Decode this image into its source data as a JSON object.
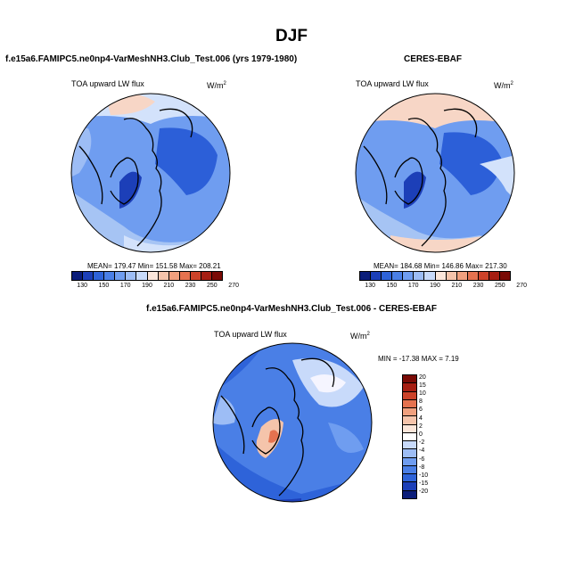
{
  "season_title": "DJF",
  "panels": {
    "model": {
      "title": "f.e15a6.FAMIPC5.ne0np4-VarMeshNH3.Club_Test.006 (yrs 1979-1980)",
      "variable": "TOA upward LW flux",
      "units_base": "W/m",
      "units_exp": "2",
      "stats": "MEAN= 179.47  Min= 151.58  Max= 208.21"
    },
    "obs": {
      "title": "CERES-EBAF",
      "variable": "TOA upward LW flux",
      "units_base": "W/m",
      "units_exp": "2",
      "stats": "MEAN= 184.68  Min= 146.86  Max= 217.30"
    },
    "diff": {
      "title": "f.e15a6.FAMIPC5.ne0np4-VarMeshNH3.Club_Test.006 - CERES-EBAF",
      "variable": "TOA upward LW flux",
      "units_base": "W/m",
      "units_exp": "2",
      "minmax": "MIN = -17.38  MAX =  7.19"
    }
  },
  "colorbar_abs": {
    "colors": [
      "#0b1d7a",
      "#1c3fb8",
      "#2e63d9",
      "#4a7fe6",
      "#6f9df0",
      "#9dbdf5",
      "#c8dafa",
      "#fbe6da",
      "#f5c4ab",
      "#f0a07e",
      "#e5724f",
      "#cc4229",
      "#a61e12",
      "#7a0a05"
    ],
    "labels": [
      "130",
      "150",
      "170",
      "190",
      "210",
      "230",
      "250",
      "270"
    ]
  },
  "colorbar_diff": {
    "colors": [
      "#7a0a05",
      "#a61e12",
      "#cc4229",
      "#e5724f",
      "#f0a07e",
      "#f5c4ab",
      "#fbe6da",
      "#ffffff",
      "#c8dafa",
      "#9dbdf5",
      "#6f9df0",
      "#4a7fe6",
      "#2e63d9",
      "#1c3fb8",
      "#0b1d7a"
    ],
    "labels": [
      "20",
      "15",
      "10",
      "8",
      "6",
      "4",
      "2",
      "0",
      "-2",
      "-4",
      "-6",
      "-8",
      "-10",
      "-15",
      "-20"
    ]
  },
  "palette": {
    "ocean_blue": "#5c8ef0",
    "deep_blue": "#2c5fd8",
    "light_blue": "#a6c4f4",
    "pale_blue": "#d3e2fb",
    "warm": "#f7d6c6",
    "hot": "#ec9a7c"
  }
}
